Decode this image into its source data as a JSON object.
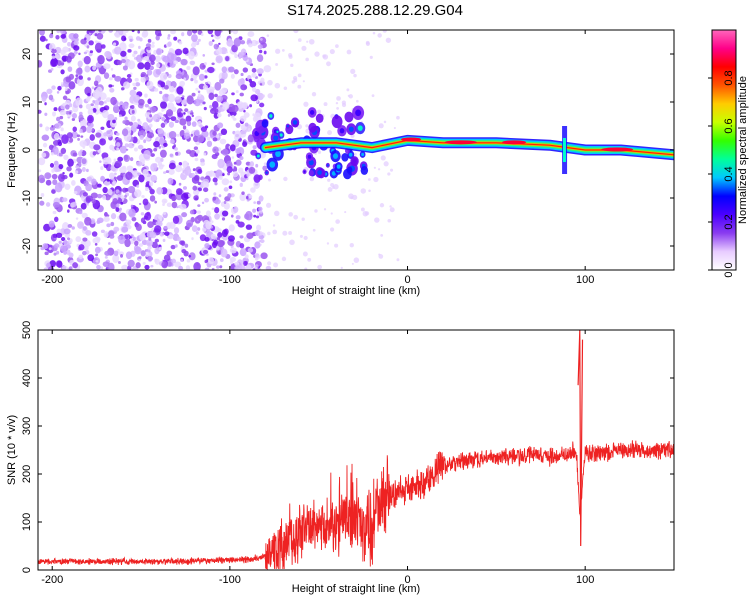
{
  "title": "S174.2025.288.12.29.G04",
  "chart_data": [
    {
      "type": "heatmap",
      "name": "spectrogram",
      "title": "S174.2025.288.12.29.G04",
      "xlabel": "Height of straight line (km)",
      "ylabel": "Frequency (Hz)",
      "xlim": [
        -208,
        150
      ],
      "ylim": [
        -25,
        25
      ],
      "xticks": [
        -200,
        -100,
        0,
        100
      ],
      "yticks": [
        20,
        10,
        0,
        -10,
        -20
      ],
      "colorbar": {
        "label": "Normalized spectral amplitude",
        "range": [
          0,
          1
        ],
        "ticks": [
          "0.0",
          "0.2",
          "0.4",
          "0.6",
          "0.8"
        ],
        "colors": [
          "#ffffff",
          "#e8ccff",
          "#8a3cf0",
          "#4b00ff",
          "#0000ff",
          "#00c8ff",
          "#00ff9a",
          "#33ff00",
          "#c8ff00",
          "#ffcc00",
          "#ff5500",
          "#ff0000",
          "#ff0088",
          "#ff66bb"
        ]
      },
      "signal_track": [
        {
          "x": -80,
          "freq": 0.5
        },
        {
          "x": -60,
          "freq": 1.5
        },
        {
          "x": -40,
          "freq": 1.5
        },
        {
          "x": -20,
          "freq": 0.5
        },
        {
          "x": 0,
          "freq": 2.0
        },
        {
          "x": 20,
          "freq": 1.5
        },
        {
          "x": 50,
          "freq": 1.5
        },
        {
          "x": 80,
          "freq": 1.0
        },
        {
          "x": 100,
          "freq": 0.0
        },
        {
          "x": 120,
          "freq": 0.0
        },
        {
          "x": 150,
          "freq": -1.0
        }
      ]
    },
    {
      "type": "line",
      "name": "snr",
      "xlabel": "Height of straight line (km)",
      "ylabel": "SNR (10 * v/v)",
      "xlim": [
        -208,
        150
      ],
      "ylim": [
        0,
        500
      ],
      "xticks": [
        -200,
        -100,
        0,
        100
      ],
      "yticks": [
        0,
        100,
        200,
        300,
        400,
        500
      ],
      "color": "#ee2222",
      "series": [
        {
          "name": "SNR",
          "x": [
            -208,
            -190,
            -170,
            -150,
            -130,
            -110,
            -90,
            -80,
            -70,
            -60,
            -50,
            -40,
            -30,
            -20,
            -15,
            -10,
            -5,
            0,
            10,
            20,
            30,
            40,
            50,
            60,
            70,
            80,
            90,
            95,
            97,
            100,
            110,
            120,
            130,
            140,
            150
          ],
          "y": [
            18,
            18,
            18,
            18,
            18,
            20,
            22,
            28,
            50,
            75,
            85,
            95,
            105,
            80,
            150,
            155,
            165,
            170,
            185,
            220,
            225,
            230,
            235,
            235,
            240,
            235,
            240,
            250,
            120,
            245,
            245,
            250,
            250,
            250,
            250
          ]
        }
      ],
      "spikes": [
        {
          "x": 96,
          "y": 385
        },
        {
          "x": 97,
          "y": 500
        },
        {
          "x": 97.5,
          "y": 50
        },
        {
          "x": 98.5,
          "y": 480
        }
      ]
    }
  ]
}
